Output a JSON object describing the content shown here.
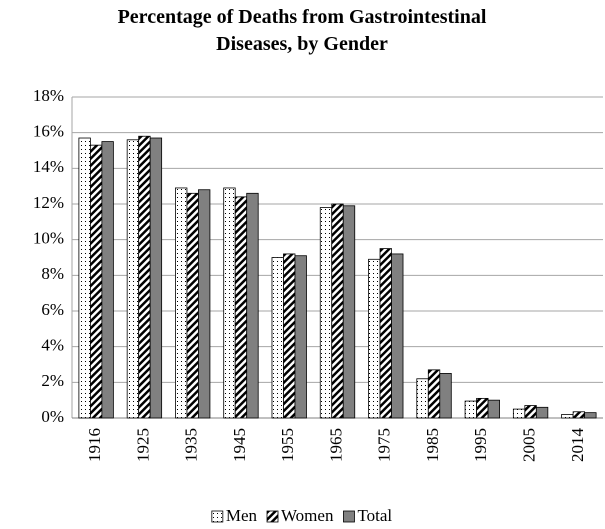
{
  "chart_data": {
    "type": "bar",
    "title": "Percentage of Deaths from Gastrointestinal Diseases, by Gender",
    "categories": [
      "1916",
      "1925",
      "1935",
      "1945",
      "1955",
      "1965",
      "1975",
      "1985",
      "1995",
      "2005",
      "2014"
    ],
    "series": [
      {
        "name": "Men",
        "color": "#ffffff",
        "pattern": "dots",
        "values": [
          15.7,
          15.6,
          12.9,
          12.9,
          9.0,
          11.8,
          8.9,
          2.2,
          0.95,
          0.5,
          0.2
        ]
      },
      {
        "name": "Women",
        "color": "#ffffff",
        "pattern": "stripes",
        "values": [
          15.3,
          15.8,
          12.6,
          12.4,
          9.2,
          12.0,
          9.5,
          2.7,
          1.1,
          0.7,
          0.35
        ]
      },
      {
        "name": "Total",
        "color": "#808080",
        "pattern": "solid",
        "values": [
          15.5,
          15.7,
          12.8,
          12.6,
          9.1,
          11.9,
          9.2,
          2.5,
          1.0,
          0.6,
          0.3
        ]
      }
    ],
    "ylim": [
      0,
      18
    ],
    "yticks": [
      {
        "value": 0,
        "label": "0%"
      },
      {
        "value": 2,
        "label": "2%"
      },
      {
        "value": 4,
        "label": "4%"
      },
      {
        "value": 6,
        "label": "6%"
      },
      {
        "value": 8,
        "label": "8%"
      },
      {
        "value": 10,
        "label": "10%"
      },
      {
        "value": 12,
        "label": "12%"
      },
      {
        "value": 14,
        "label": "14%"
      },
      {
        "value": 16,
        "label": "16%"
      },
      {
        "value": 18,
        "label": "18%"
      }
    ],
    "grid": true,
    "legend": "bottom"
  }
}
